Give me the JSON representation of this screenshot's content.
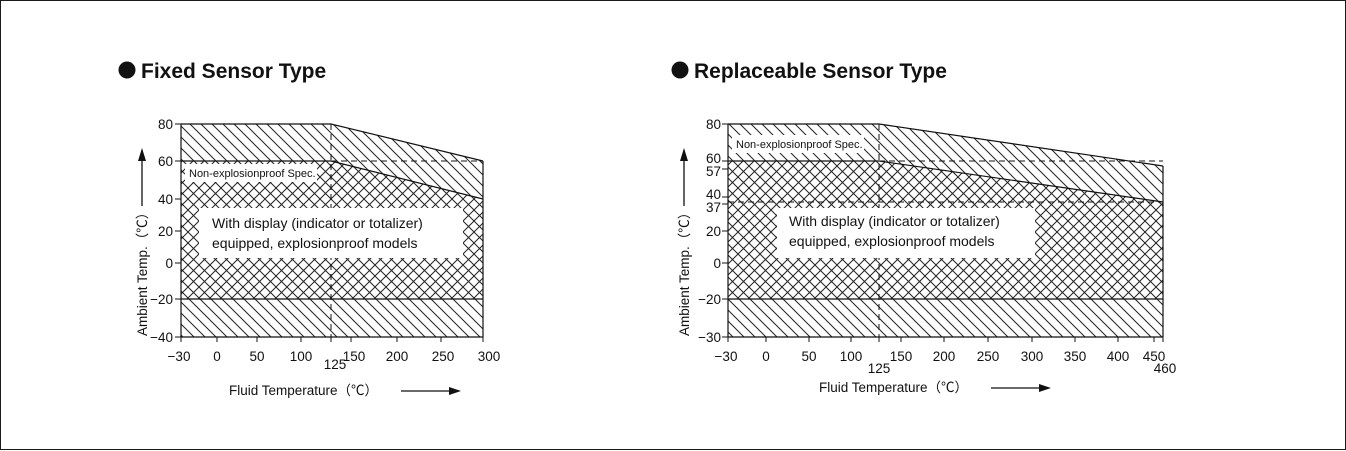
{
  "chart_data": [
    {
      "type": "area",
      "title": "Fixed Sensor Type",
      "xlabel": "Fluid Temperature（℃）",
      "ylabel": "Ambient Temp.（℃）",
      "xlim": [
        -30,
        300
      ],
      "ylim": [
        -40,
        80
      ],
      "x_ticks": [
        "−30",
        "0",
        "50",
        "100",
        "125",
        "150",
        "200",
        "250",
        "300"
      ],
      "y_ticks": [
        "80",
        "60",
        "40",
        "20",
        "0",
        "−20",
        "−40"
      ],
      "regions": [
        {
          "name": "Non-explosionproof Spec.",
          "boundary": [
            [
              -30,
              80
            ],
            [
              125,
              80
            ],
            [
              300,
              60
            ],
            [
              300,
              -40
            ],
            [
              -30,
              -40
            ]
          ]
        },
        {
          "name": "With display (indicator or totalizer) equipped, explosionproof models",
          "boundary": [
            [
              -30,
              60
            ],
            [
              125,
              60
            ],
            [
              300,
              40
            ],
            [
              300,
              -20
            ],
            [
              -30,
              -20
            ]
          ]
        }
      ],
      "labels": {
        "nonexp": "Non-explosionproof Spec.",
        "exp_line1": "With display (indicator or totalizer)",
        "exp_line2": "equipped, explosionproof models"
      }
    },
    {
      "type": "area",
      "title": "Replaceable Sensor Type",
      "xlabel": "Fluid Temperature（℃）",
      "ylabel": "Ambient Temp.（℃）",
      "xlim": [
        -30,
        460
      ],
      "ylim": [
        -30,
        80
      ],
      "x_ticks": [
        "−30",
        "0",
        "50",
        "100",
        "125",
        "150",
        "200",
        "250",
        "300",
        "350",
        "400",
        "450",
        "460"
      ],
      "y_ticks": [
        "80",
        "60",
        "57",
        "40",
        "37",
        "20",
        "0",
        "−20",
        "−30"
      ],
      "regions": [
        {
          "name": "Non-explosionproof Spec.",
          "boundary": [
            [
              -30,
              80
            ],
            [
              125,
              80
            ],
            [
              460,
              57
            ],
            [
              460,
              -30
            ],
            [
              -30,
              -30
            ]
          ]
        },
        {
          "name": "With display (indicator or totalizer) equipped, explosionproof models",
          "boundary": [
            [
              -30,
              60
            ],
            [
              125,
              60
            ],
            [
              460,
              37
            ],
            [
              460,
              -20
            ],
            [
              -30,
              -20
            ]
          ]
        }
      ],
      "labels": {
        "nonexp": "Non-explosionproof Spec.",
        "exp_line1": "With display (indicator or totalizer)",
        "exp_line2": "equipped, explosionproof models"
      }
    }
  ]
}
